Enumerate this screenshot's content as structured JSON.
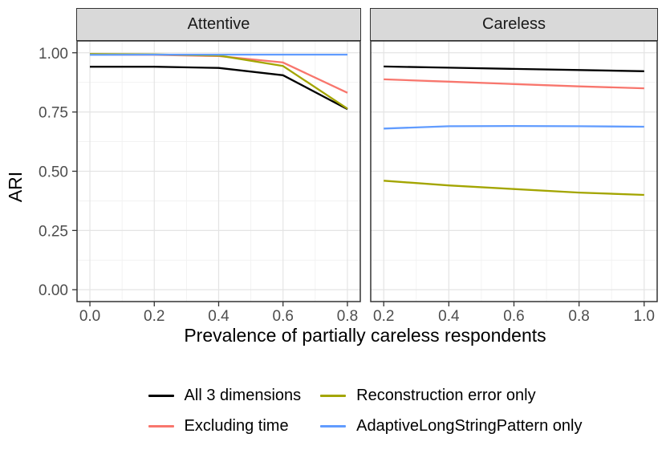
{
  "chart_data": {
    "type": "line",
    "title": "",
    "xlabel": "Prevalence of partially careless respondents",
    "ylabel": "ARI",
    "ylim": [
      0,
      1
    ],
    "grid": "major+minor",
    "legend_position": "bottom",
    "y_ticks": [
      0,
      0.25,
      0.5,
      0.75,
      1.0
    ],
    "y_tick_labels": [
      "0.00",
      "0.25",
      "0.50",
      "0.75",
      "1.00"
    ],
    "panels": [
      {
        "title": "Attentive",
        "x": [
          0.0,
          0.2,
          0.4,
          0.6,
          0.8
        ],
        "x_tick_labels": [
          "0.0",
          "0.2",
          "0.4",
          "0.6",
          "0.8"
        ],
        "series": [
          {
            "name": "All 3 dimensions",
            "color": "#000000",
            "values": [
              0.941,
              0.941,
              0.936,
              0.905,
              0.762
            ]
          },
          {
            "name": "Excluding time",
            "color": "#F8766D",
            "values": [
              0.991,
              0.991,
              0.986,
              0.959,
              0.831
            ]
          },
          {
            "name": "Reconstruction error only",
            "color": "#A3A500",
            "values": [
              0.995,
              0.993,
              0.988,
              0.944,
              0.764
            ]
          },
          {
            "name": "AdaptiveLongStringPattern only",
            "color": "#619CFF",
            "values": [
              0.991,
              0.992,
              0.992,
              0.992,
              0.992
            ]
          }
        ]
      },
      {
        "title": "Careless",
        "x": [
          0.2,
          0.4,
          0.6,
          0.8,
          1.0
        ],
        "x_tick_labels": [
          "0.2",
          "0.4",
          "0.6",
          "0.8",
          "1.0"
        ],
        "series": [
          {
            "name": "All 3 dimensions",
            "color": "#000000",
            "values": [
              0.942,
              0.937,
              0.932,
              0.927,
              0.922
            ]
          },
          {
            "name": "Excluding time",
            "color": "#F8766D",
            "values": [
              0.888,
              0.878,
              0.868,
              0.858,
              0.85
            ]
          },
          {
            "name": "Reconstruction error only",
            "color": "#A3A500",
            "values": [
              0.46,
              0.44,
              0.425,
              0.41,
              0.4
            ]
          },
          {
            "name": "AdaptiveLongStringPattern only",
            "color": "#619CFF",
            "values": [
              0.68,
              0.69,
              0.691,
              0.69,
              0.688
            ]
          }
        ]
      }
    ],
    "legend": {
      "items": [
        {
          "label": "All 3 dimensions",
          "color": "#000000"
        },
        {
          "label": "Excluding time",
          "color": "#F8766D"
        },
        {
          "label": "Reconstruction error only",
          "color": "#A3A500"
        },
        {
          "label": "AdaptiveLongStringPattern only",
          "color": "#619CFF"
        }
      ]
    },
    "style_colors": {
      "panel_border": "#333333",
      "strip_background": "#d9d9d9",
      "grid_major": "#e4e4e4",
      "grid_minor": "#f1f1f1",
      "tick_label": "#4d4d4d"
    }
  }
}
